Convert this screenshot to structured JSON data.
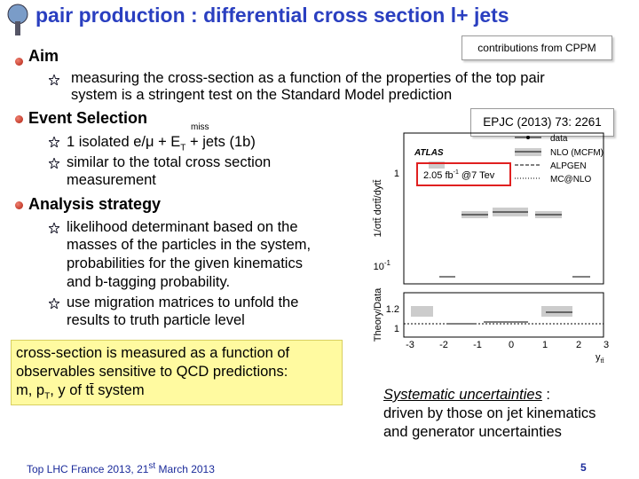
{
  "header": {
    "title": "pair production : differential cross section l+ jets",
    "badge": "contributions from CPPM"
  },
  "aim": {
    "heading": "Aim",
    "item": [
      "measuring the cross-section as a function of the properties of the top pair",
      "system is a stringent test on the Standard Model prediction"
    ]
  },
  "selection": {
    "heading": "Event Selection",
    "item1": [
      "1 isolated e/μ + E",
      "T",
      "miss",
      " + jets (1b)"
    ],
    "item2": [
      "similar to the total cross section",
      "measurement"
    ]
  },
  "analysis": {
    "heading": "Analysis strategy",
    "item1": [
      "likelihood determinant based on the",
      "masses of the particles in the system,",
      "probabilities for the given kinematics",
      "and b-tagging probability."
    ],
    "item2": [
      "use migration matrices to unfold the",
      "results to truth particle level"
    ]
  },
  "summary": [
    "cross-section is measured as a function of",
    "observables sensitive to QCD predictions:",
    "m, p",
    "T",
    ", y of tt̄ system"
  ],
  "reference": "EPJC (2013) 73: 2261",
  "plot": {
    "luminosity": [
      "2.05 fb",
      "-1",
      " @7 Tev"
    ],
    "experiment": "ATLAS",
    "legend": [
      "data",
      "NLO (MCFM)",
      "ALPGEN",
      "MC@NLO"
    ],
    "y_label": "1/σtt̄ dσtt̄/dytt̄",
    "ratio_label": "Theory/Data",
    "x_label": [
      "y",
      "tt̄"
    ],
    "x_ticks": [
      "-3",
      "-2",
      "-1",
      "0",
      "1",
      "2",
      "3"
    ],
    "y_ticks": [
      "1",
      "10",
      "-1"
    ],
    "ratio_ticks": [
      "1.2",
      "1"
    ]
  },
  "note": [
    "Systematic uncertainties",
    " :",
    "driven by those on jet kinematics",
    "and generator uncertainties"
  ],
  "footer": {
    "event": [
      "Top LHC France 2013, 21",
      "st",
      " March 2013"
    ],
    "page": "5"
  }
}
